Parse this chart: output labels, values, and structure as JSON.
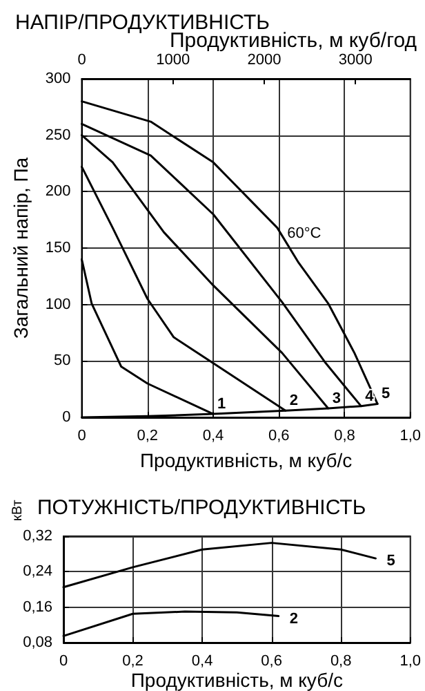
{
  "chart_data": [
    {
      "type": "line",
      "title": "НАПІР/ПРОДУКТИВНІСТЬ",
      "xlabel": "Продуктивність, м куб/с",
      "ylabel": "Загальний напір, Па",
      "x2label": "Продуктивність, м куб/год",
      "xlim": [
        0,
        1
      ],
      "xticks": [
        0,
        {
          "value": 0.2,
          "label": "0,2"
        },
        {
          "value": 0.4,
          "label": "0,4"
        },
        {
          "value": 0.6,
          "label": "0,6"
        },
        {
          "value": 0.8,
          "label": "0,8"
        },
        {
          "value": 1,
          "label": "1,0"
        }
      ],
      "x2lim": [
        0,
        3600
      ],
      "x2ticks": [
        0,
        1000,
        2000,
        3000
      ],
      "ylim": [
        0,
        300
      ],
      "yticks": [
        0,
        50,
        100,
        150,
        200,
        250,
        300
      ],
      "grid": true,
      "legend": false,
      "marker": "none",
      "line_style": "solid",
      "series": [
        {
          "name": "1",
          "color": "#000000",
          "x": [
            0,
            0.03,
            0.12,
            0.2,
            0.4
          ],
          "values": [
            140,
            101,
            45,
            30,
            3
          ]
        },
        {
          "name": "2",
          "color": "#000000",
          "x": [
            0,
            0.094,
            0.126,
            0.2,
            0.28,
            0.4,
            0.62
          ],
          "values": [
            222,
            168,
            149,
            105,
            71,
            48,
            6
          ]
        },
        {
          "name": "3",
          "color": "#000000",
          "x": [
            0,
            0.094,
            0.25,
            0.4,
            0.61,
            0.75
          ],
          "values": [
            250,
            226,
            164,
            117,
            57,
            8
          ]
        },
        {
          "name": "4",
          "color": "#000000",
          "x": [
            0,
            0.21,
            0.4,
            0.61,
            0.74,
            0.85
          ],
          "values": [
            260,
            232,
            180,
            102,
            49,
            10
          ]
        },
        {
          "name": "5",
          "color": "#000000",
          "x": [
            0,
            0.21,
            0.4,
            0.595,
            0.66,
            0.75,
            0.83,
            0.9
          ],
          "values": [
            280,
            262,
            226,
            168,
            137,
            101,
            57,
            12
          ]
        },
        {
          "color": "#000000",
          "x": [
            0,
            0.2,
            0.4,
            0.62,
            0.75,
            0.85,
            0.9
          ],
          "values": [
            0,
            1,
            3,
            6,
            8,
            10,
            12
          ]
        }
      ],
      "annotations": [
        {
          "text": "60°C",
          "x": 0.6,
          "y": 165
        }
      ]
    },
    {
      "type": "line",
      "title": "ПОТУЖНІСТЬ/ПРОДУКТИВНІСТЬ",
      "xlabel": "Продуктивність, м куб/с",
      "ylabel": "кВт",
      "xlim": [
        0,
        1
      ],
      "xticks": [
        0,
        {
          "value": 0.2,
          "label": "0,2"
        },
        {
          "value": 0.4,
          "label": "0,4"
        },
        {
          "value": 0.6,
          "label": "0,6"
        },
        {
          "value": 0.8,
          "label": "0,8"
        },
        {
          "value": 1,
          "label": "1,0"
        }
      ],
      "ylim": [
        0.08,
        0.32
      ],
      "yticks": [
        {
          "value": 0.08,
          "label": "0,08"
        },
        {
          "value": 0.16,
          "label": "0,16"
        },
        {
          "value": 0.24,
          "label": "0,24"
        },
        {
          "value": 0.32,
          "label": "0,32"
        }
      ],
      "grid": true,
      "legend": false,
      "marker": "none",
      "line_style": "solid",
      "series": [
        {
          "name": "5",
          "color": "#000000",
          "x": [
            0,
            0.2,
            0.4,
            0.6,
            0.8,
            0.9
          ],
          "values": [
            0.205,
            0.25,
            0.29,
            0.305,
            0.29,
            0.27
          ]
        },
        {
          "name": "2",
          "color": "#000000",
          "x": [
            0,
            0.2,
            0.35,
            0.5,
            0.62
          ],
          "values": [
            0.095,
            0.145,
            0.15,
            0.148,
            0.14
          ]
        }
      ]
    }
  ]
}
